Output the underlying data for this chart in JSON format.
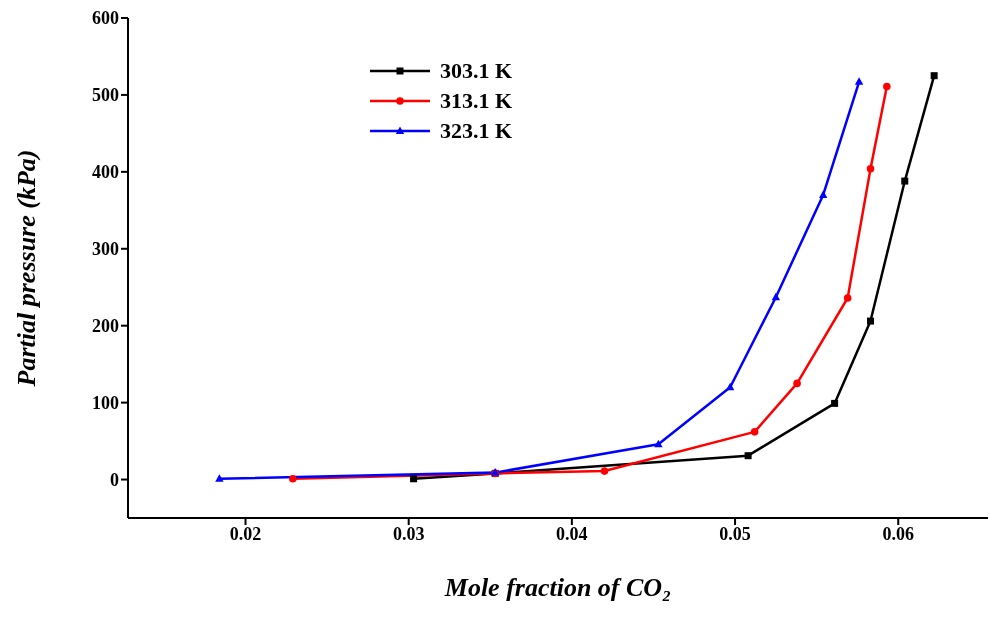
{
  "chart_data": {
    "type": "line",
    "xlabel": "Mole fraction of CO₂",
    "ylabel": "Partial pressure (kPa)",
    "xlim": [
      0.0128,
      0.0655
    ],
    "xticks": [
      0.02,
      0.03,
      0.04,
      0.05,
      0.06
    ],
    "ylim": [
      -50,
      600
    ],
    "yticks": [
      0,
      100,
      200,
      300,
      400,
      500,
      600
    ],
    "grid": false,
    "legend": "top left",
    "line_style": "solid",
    "series": [
      {
        "name": "303.1 K",
        "color": "#000000",
        "marker": "square",
        "x": [
          0.0303,
          0.0353,
          0.0508,
          0.0561,
          0.0583,
          0.0604,
          0.0622
        ],
        "values": [
          1,
          8,
          31,
          99,
          206,
          388,
          525
        ]
      },
      {
        "name": "313.1 K",
        "color": "#ff0000",
        "marker": "circle",
        "x": [
          0.0229,
          0.0353,
          0.042,
          0.0512,
          0.0538,
          0.0569,
          0.0583,
          0.0593
        ],
        "values": [
          1,
          8,
          11,
          62,
          125,
          236,
          404,
          511
        ]
      },
      {
        "name": "323.1 K",
        "color": "#0000ff",
        "marker": "triangle",
        "x": [
          0.0184,
          0.0353,
          0.0453,
          0.0497,
          0.0525,
          0.0554,
          0.0576
        ],
        "values": [
          1,
          9,
          46,
          120,
          237,
          370,
          517
        ]
      }
    ]
  }
}
